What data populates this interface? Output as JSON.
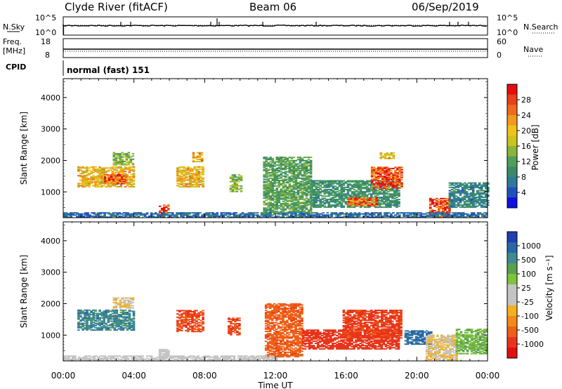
{
  "header": {
    "station": "Clyde River (fitACF)",
    "beam": "Beam 06",
    "date": "06/Sep/2019"
  },
  "panels": {
    "nsky": {
      "label": "N.Sky",
      "top_tick": "10^5",
      "bottom_tick": "10^0",
      "right_top_tick": "10^5",
      "right_bottom_tick": "10^0",
      "right_label": "N.Search"
    },
    "freq": {
      "label_line1": "Freq.",
      "label_line2": "[MHz]",
      "top_tick": "18",
      "bottom_tick": "8",
      "right_top_tick": "60",
      "right_bottom_tick": "0",
      "right_label": "Nave"
    },
    "cpid": {
      "label": "CPID",
      "text": "normal (fast) 151"
    }
  },
  "colors": {
    "power_scale": [
      "#1010e0",
      "#2050c0",
      "#2e7a9a",
      "#3a8a6a",
      "#4f9e5a",
      "#8ab33a",
      "#c7c520",
      "#f1c21b",
      "#f29a1f",
      "#ef6a1c",
      "#e8401a",
      "#e20f0f"
    ],
    "velocity_scale": [
      "#1f3fb0",
      "#2a66a8",
      "#3f8a92",
      "#5aa04e",
      "#7fc23c",
      "#c4c4c4",
      "#c4c4c4",
      "#f3b020",
      "#f28a1a",
      "#ee5f17",
      "#e8341a",
      "#e00f0f"
    ],
    "ground_scatter": "#c0c0c0"
  },
  "chart_data": [
    {
      "type": "heatmap",
      "name": "power",
      "title": "",
      "xlabel": "",
      "ylabel": "Slant Range [km]",
      "xlim": [
        "00:00",
        "24:00"
      ],
      "ylim": [
        180,
        4600
      ],
      "x_ticks": [
        "00:00",
        "04:00",
        "08:00",
        "12:00",
        "16:00",
        "20:00",
        "00:00"
      ],
      "y_ticks": [
        1000,
        2000,
        3000,
        4000
      ],
      "colorbar": {
        "label": "Power [dB]",
        "range": [
          0,
          32
        ],
        "ticks": [
          4,
          8,
          12,
          16,
          20,
          24,
          28
        ]
      },
      "regions": [
        {
          "t0": 0.8,
          "t1": 4.0,
          "r0": 1150,
          "r1": 1800,
          "value": 20
        },
        {
          "t0": 2.3,
          "t1": 3.6,
          "r0": 1250,
          "r1": 1550,
          "value": 26
        },
        {
          "t0": 2.8,
          "t1": 3.9,
          "r0": 1850,
          "r1": 2250,
          "value": 14
        },
        {
          "t0": 5.4,
          "t1": 5.9,
          "r0": 250,
          "r1": 600,
          "value": 28
        },
        {
          "t0": 6.4,
          "t1": 7.9,
          "r0": 1150,
          "r1": 1800,
          "value": 20
        },
        {
          "t0": 7.3,
          "t1": 7.8,
          "r0": 1950,
          "r1": 2250,
          "value": 22
        },
        {
          "t0": 9.4,
          "t1": 10.0,
          "r0": 1000,
          "r1": 1550,
          "value": 14
        },
        {
          "t0": 11.3,
          "t1": 14.0,
          "r0": 300,
          "r1": 2100,
          "value": 12
        },
        {
          "t0": 14.0,
          "t1": 19.0,
          "r0": 500,
          "r1": 1350,
          "value": 10
        },
        {
          "t0": 16.1,
          "t1": 17.7,
          "r0": 550,
          "r1": 800,
          "value": 26
        },
        {
          "t0": 17.4,
          "t1": 19.1,
          "r0": 1100,
          "r1": 1800,
          "value": 28
        },
        {
          "t0": 17.9,
          "t1": 18.7,
          "r0": 2050,
          "r1": 2250,
          "value": 20
        },
        {
          "t0": 20.7,
          "t1": 21.8,
          "r0": 180,
          "r1": 800,
          "value": 28
        },
        {
          "t0": 21.8,
          "t1": 24.0,
          "r0": 500,
          "r1": 1300,
          "value": 8
        },
        {
          "t0": 0.0,
          "t1": 24.0,
          "r0": 180,
          "r1": 330,
          "value": 6
        }
      ]
    },
    {
      "type": "heatmap",
      "name": "velocity",
      "title": "",
      "xlabel": "Time UT",
      "ylabel": "Slant Range [km]",
      "xlim": [
        "00:00",
        "24:00"
      ],
      "ylim": [
        180,
        4600
      ],
      "x_ticks": [
        "00:00",
        "04:00",
        "08:00",
        "12:00",
        "16:00",
        "20:00",
        "00:00"
      ],
      "y_ticks": [
        1000,
        2000,
        3000,
        4000
      ],
      "colorbar": {
        "label": "Velocity [m s⁻¹]",
        "ticks": [
          "1000",
          "500",
          "100",
          "25",
          "-25",
          "-100",
          "-500",
          "-1000"
        ]
      },
      "regions": [
        {
          "t0": 0.8,
          "t1": 4.0,
          "r0": 1150,
          "r1": 1800,
          "value": 600
        },
        {
          "t0": 2.8,
          "t1": 3.9,
          "r0": 1850,
          "r1": 2200,
          "value": 0
        },
        {
          "t0": 5.4,
          "t1": 5.9,
          "r0": 250,
          "r1": 550,
          "value": 60
        },
        {
          "t0": 6.4,
          "t1": 7.9,
          "r0": 1100,
          "r1": 1800,
          "value": -300
        },
        {
          "t0": 9.3,
          "t1": 10.0,
          "r0": 1000,
          "r1": 1550,
          "value": -300
        },
        {
          "t0": 11.4,
          "t1": 13.5,
          "r0": 300,
          "r1": 2000,
          "value": -250
        },
        {
          "t0": 13.5,
          "t1": 19.0,
          "r0": 550,
          "r1": 1150,
          "value": -400
        },
        {
          "t0": 15.8,
          "t1": 19.1,
          "r0": 900,
          "r1": 1800,
          "value": -350
        },
        {
          "t0": 19.3,
          "t1": 20.8,
          "r0": 700,
          "r1": 1150,
          "value": 800
        },
        {
          "t0": 20.5,
          "t1": 22.2,
          "r0": 180,
          "r1": 1000,
          "value": 0
        },
        {
          "t0": 22.2,
          "t1": 24.0,
          "r0": 400,
          "r1": 1200,
          "value": 300
        },
        {
          "t0": 0.0,
          "t1": 12.0,
          "r0": 180,
          "r1": 330,
          "value": 60
        }
      ]
    }
  ]
}
